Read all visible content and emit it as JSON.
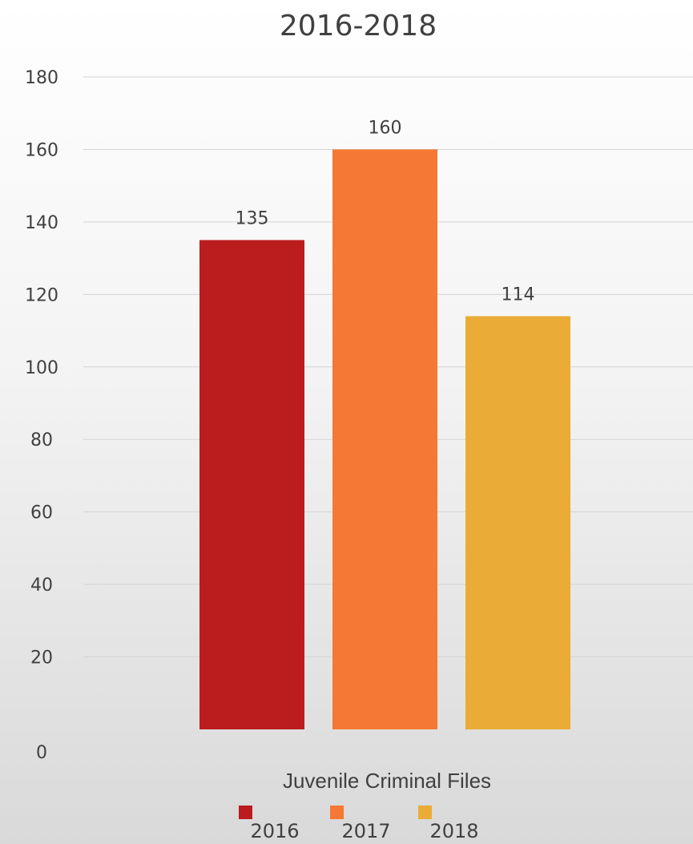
{
  "chart_data": {
    "type": "bar",
    "title": "2016-2018",
    "category_label": "Juvenile Criminal Files",
    "categories": [
      "Juvenile Criminal Files"
    ],
    "series": [
      {
        "name": "2016",
        "values": [
          135
        ],
        "color": "#bb1c1e"
      },
      {
        "name": "2017",
        "values": [
          160
        ],
        "color": "#f57834"
      },
      {
        "name": "2018",
        "values": [
          114
        ],
        "color": "#eaac36"
      }
    ],
    "data_labels": [
      "135",
      "160",
      "114"
    ],
    "y_ticks": [
      0,
      20,
      40,
      60,
      80,
      100,
      120,
      140,
      160,
      180
    ],
    "ylim": [
      0,
      180
    ],
    "grid": true,
    "legend_position": "bottom"
  }
}
